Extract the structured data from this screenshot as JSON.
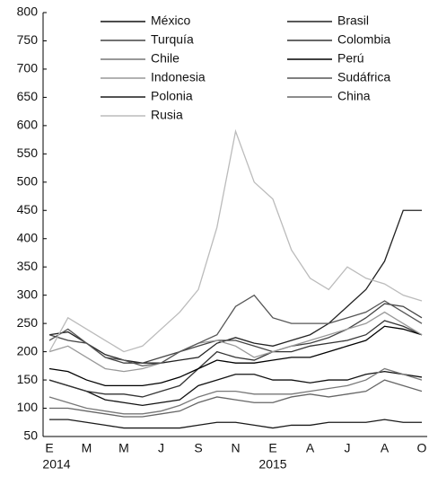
{
  "chart_data": {
    "type": "line",
    "categories": [
      "E",
      null,
      "M",
      null,
      "M",
      null,
      "J",
      null,
      "S",
      null,
      "N",
      null,
      "E",
      null,
      "A",
      null,
      "J",
      null,
      "A",
      null,
      "O"
    ],
    "annotations": [
      "2014",
      "2015"
    ],
    "ylim": [
      50,
      800
    ],
    "yticks": [
      50,
      100,
      150,
      200,
      250,
      300,
      350,
      400,
      450,
      500,
      550,
      600,
      650,
      700,
      750,
      800
    ],
    "series": [
      {
        "name": "México",
        "color": "#111111",
        "values": [
          150,
          140,
          130,
          115,
          110,
          105,
          110,
          115,
          140,
          150,
          160,
          160,
          150,
          150,
          145,
          150,
          150,
          160,
          165,
          160,
          155
        ]
      },
      {
        "name": "Brasil",
        "color": "#222222",
        "values": [
          230,
          235,
          215,
          195,
          185,
          180,
          180,
          185,
          190,
          215,
          225,
          215,
          210,
          220,
          230,
          250,
          280,
          310,
          360,
          450,
          450
        ]
      },
      {
        "name": "Turquía",
        "color": "#444444",
        "values": [
          230,
          220,
          215,
          190,
          180,
          180,
          190,
          200,
          210,
          220,
          220,
          210,
          200,
          210,
          215,
          225,
          240,
          260,
          285,
          280,
          260
        ]
      },
      {
        "name": "Colombia",
        "color": "#333333",
        "values": [
          150,
          140,
          130,
          125,
          125,
          120,
          130,
          140,
          170,
          200,
          190,
          185,
          200,
          200,
          210,
          215,
          220,
          230,
          255,
          245,
          230
        ]
      },
      {
        "name": "Chile",
        "color": "#777777",
        "values": [
          120,
          110,
          100,
          95,
          90,
          90,
          95,
          105,
          120,
          130,
          130,
          125,
          125,
          125,
          130,
          135,
          140,
          150,
          170,
          160,
          150
        ]
      },
      {
        "name": "Perú",
        "color": "#000000",
        "values": [
          170,
          165,
          150,
          140,
          140,
          140,
          145,
          155,
          170,
          185,
          180,
          180,
          185,
          190,
          190,
          200,
          210,
          220,
          245,
          240,
          230
        ]
      },
      {
        "name": "Indonesia",
        "color": "#999999",
        "values": [
          200,
          210,
          190,
          170,
          165,
          170,
          180,
          200,
          215,
          220,
          210,
          190,
          200,
          210,
          220,
          230,
          240,
          250,
          270,
          250,
          230
        ]
      },
      {
        "name": "Sudáfrica",
        "color": "#555555",
        "values": [
          220,
          240,
          215,
          190,
          185,
          175,
          180,
          200,
          215,
          230,
          280,
          300,
          260,
          250,
          250,
          250,
          260,
          270,
          290,
          270,
          250
        ]
      },
      {
        "name": "Polonia",
        "color": "#1a1a1a",
        "values": [
          80,
          80,
          75,
          70,
          65,
          65,
          65,
          65,
          70,
          75,
          75,
          70,
          65,
          70,
          70,
          75,
          75,
          75,
          80,
          75,
          75
        ]
      },
      {
        "name": "China",
        "color": "#666666",
        "values": [
          100,
          100,
          95,
          90,
          85,
          85,
          90,
          95,
          110,
          120,
          115,
          110,
          110,
          120,
          125,
          120,
          125,
          130,
          150,
          140,
          130
        ]
      },
      {
        "name": "Rusia",
        "color": "#bbbbbb",
        "values": [
          200,
          260,
          240,
          220,
          200,
          210,
          240,
          270,
          310,
          420,
          590,
          500,
          470,
          380,
          330,
          310,
          350,
          330,
          320,
          300,
          290
        ]
      }
    ]
  }
}
